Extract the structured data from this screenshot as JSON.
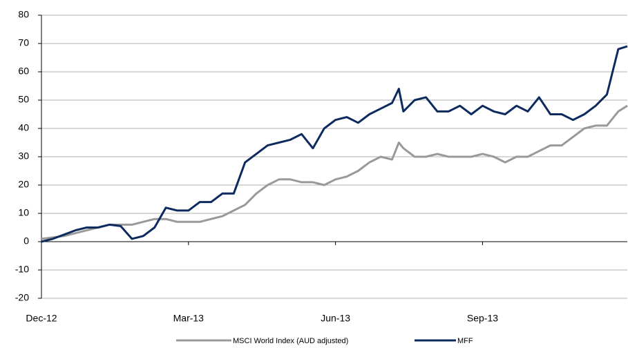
{
  "chart_data": {
    "type": "line",
    "x": [
      0,
      5,
      10,
      15,
      20,
      25,
      30,
      35,
      40,
      45,
      50,
      55,
      60,
      65,
      70,
      75,
      80,
      85,
      90,
      95,
      100,
      105,
      110,
      115,
      120,
      125,
      130,
      135,
      140,
      145,
      150,
      155,
      158,
      160,
      165,
      170,
      175,
      180,
      185,
      190,
      195,
      200,
      205,
      210,
      215,
      220,
      225,
      230,
      235,
      240,
      245,
      250,
      255,
      259
    ],
    "series": [
      {
        "name": "MSCI World Index (AUD adjusted)",
        "color": "#999999",
        "values": [
          1,
          1.5,
          2,
          3,
          4,
          5,
          6,
          6,
          6,
          7,
          8,
          8,
          7,
          7,
          7,
          8,
          9,
          11,
          13,
          17,
          20,
          22,
          22,
          21,
          21,
          20,
          22,
          23,
          25,
          28,
          30,
          29,
          35,
          33,
          30,
          30,
          31,
          30,
          30,
          30,
          31,
          30,
          28,
          30,
          30,
          32,
          34,
          34,
          37,
          40,
          41,
          41,
          46,
          48
        ]
      },
      {
        "name": "MFF",
        "color": "#0d2a5e",
        "values": [
          0,
          1,
          2.5,
          4,
          5,
          5,
          6,
          5.5,
          1,
          2,
          5,
          12,
          11,
          11,
          14,
          14,
          17,
          17,
          28,
          31,
          34,
          35,
          36,
          38,
          33,
          40,
          43,
          44,
          42,
          45,
          47,
          49,
          54,
          46,
          50,
          51,
          46,
          46,
          48,
          45,
          48,
          46,
          45,
          48,
          46,
          51,
          45,
          45,
          43,
          45,
          48,
          52,
          68,
          69
        ]
      }
    ],
    "xlim": [
      0,
      259
    ],
    "xticks": [
      {
        "value": 0,
        "label": "Dec-12"
      },
      {
        "value": 65,
        "label": "Mar-13"
      },
      {
        "value": 130,
        "label": "Jun-13"
      },
      {
        "value": 195,
        "label": "Sep-13"
      }
    ],
    "ylim": [
      -20,
      80
    ],
    "yticks": [
      -20,
      -10,
      0,
      10,
      20,
      30,
      40,
      50,
      60,
      70,
      80
    ],
    "grid": true
  }
}
